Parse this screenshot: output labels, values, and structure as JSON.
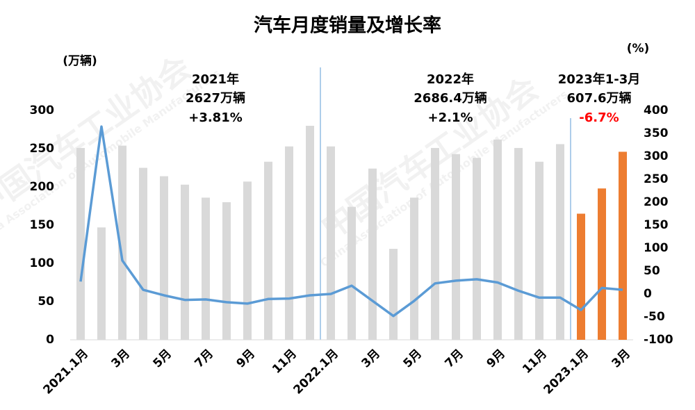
{
  "chart_data": {
    "type": "bar-line",
    "title": "汽车月度销量及增长率",
    "ylabel": "(万辆)",
    "y2label": "(%)",
    "categories": [
      "2021.1月",
      null,
      "3月",
      null,
      "5月",
      null,
      "7月",
      null,
      "9月",
      null,
      "11月",
      null,
      "2022.1月",
      null,
      "3月",
      null,
      "5月",
      null,
      "7月",
      null,
      "9月",
      null,
      "11月",
      null,
      "2023.1月",
      null,
      "3月"
    ],
    "series": [
      {
        "kind": "bar",
        "color": "#d9d9d9",
        "values": [
          251,
          147,
          254,
          225,
          214,
          203,
          186,
          180,
          207,
          233,
          253,
          280,
          253,
          174,
          224,
          119,
          186,
          251,
          243,
          238,
          262,
          251,
          233,
          256,
          null,
          null,
          null
        ]
      },
      {
        "kind": "bar",
        "color": "#ed7d31",
        "values": [
          null,
          null,
          null,
          null,
          null,
          null,
          null,
          null,
          null,
          null,
          null,
          null,
          null,
          null,
          null,
          null,
          null,
          null,
          null,
          null,
          null,
          null,
          null,
          null,
          165,
          198,
          246
        ]
      },
      {
        "kind": "line",
        "axis": "y2",
        "color": "#5b9bd5",
        "values": [
          27,
          365,
          73,
          9,
          -3,
          -13,
          -12,
          -18,
          -21,
          -11,
          -10,
          -3,
          0,
          18,
          -15,
          -48,
          -15,
          23,
          29,
          32,
          25,
          7,
          -8,
          -8,
          -35,
          13,
          9
        ]
      }
    ],
    "ylim": [
      0,
      300
    ],
    "yticks": [
      0,
      50,
      100,
      150,
      200,
      250,
      300
    ],
    "y2lim": [
      -100,
      400
    ],
    "y2ticks": [
      -100,
      -50,
      0,
      50,
      100,
      150,
      200,
      250,
      300,
      350,
      400
    ],
    "annotations": [
      [
        {
          "text": "2021年",
          "color": "#000000"
        },
        {
          "text": "2627万辆",
          "color": "#000000"
        },
        {
          "text": "+3.81%",
          "color": "#000000"
        }
      ],
      [
        {
          "text": "2022年",
          "color": "#000000"
        },
        {
          "text": "2686.4万辆",
          "color": "#000000"
        },
        {
          "text": "+2.1%",
          "color": "#000000"
        }
      ],
      [
        {
          "text": "2023年1-3月",
          "color": "#000000"
        },
        {
          "text": "607.6万辆",
          "color": "#000000"
        },
        {
          "text": "-6.7%",
          "color": "#ff0000"
        }
      ]
    ],
    "watermark": [
      "中国汽车工业协会",
      "China Association of Automobile Manufacturers"
    ]
  }
}
